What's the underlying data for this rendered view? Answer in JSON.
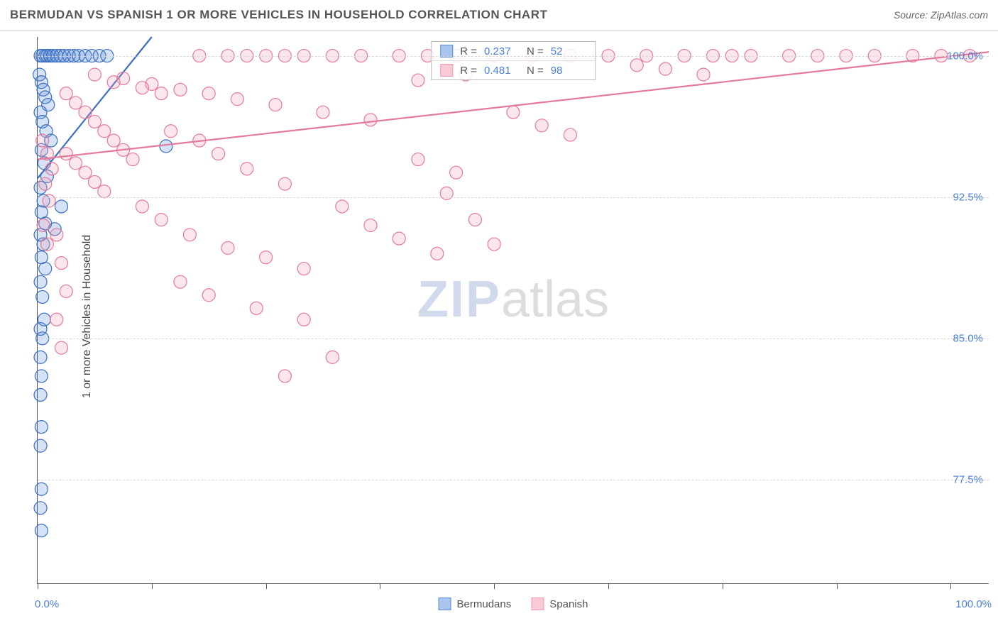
{
  "header": {
    "title": "BERMUDAN VS SPANISH 1 OR MORE VEHICLES IN HOUSEHOLD CORRELATION CHART",
    "source": "Source: ZipAtlas.com"
  },
  "chart": {
    "type": "scatter",
    "ylabel": "1 or more Vehicles in Household",
    "xlim": [
      0,
      100
    ],
    "ylim": [
      72,
      101
    ],
    "y_ticks": [
      77.5,
      85.0,
      92.5,
      100.0
    ],
    "y_tick_labels": [
      "77.5%",
      "85.0%",
      "92.5%",
      "100.0%"
    ],
    "x_ticks": [
      0,
      12,
      24,
      36,
      48,
      60,
      72,
      84,
      96
    ],
    "x_axis_labels": {
      "min": "0.0%",
      "max": "100.0%"
    },
    "background_color": "#ffffff",
    "grid_color": "#d8d8d8",
    "axis_color": "#555555",
    "tick_label_color": "#4a7fd8",
    "marker_radius": 9,
    "marker_fill_opacity": 0.25,
    "marker_stroke_width": 1.2,
    "watermark": {
      "zip": "ZIP",
      "atlas": "atlas"
    },
    "series": [
      {
        "name": "Bermudans",
        "color": "#5b8dd6",
        "stroke": "#3b6fc0",
        "trend": {
          "x1": 0,
          "y1": 93.5,
          "x2": 12,
          "y2": 101
        },
        "stats": {
          "r": "0.237",
          "n": "52"
        },
        "points": [
          [
            0.3,
            100
          ],
          [
            0.5,
            100
          ],
          [
            0.8,
            100
          ],
          [
            1.0,
            100
          ],
          [
            1.3,
            100
          ],
          [
            1.6,
            100
          ],
          [
            2.0,
            100
          ],
          [
            2.4,
            100
          ],
          [
            2.8,
            100
          ],
          [
            3.3,
            100
          ],
          [
            3.8,
            100
          ],
          [
            4.3,
            100
          ],
          [
            5.0,
            100
          ],
          [
            5.7,
            100
          ],
          [
            6.5,
            100
          ],
          [
            7.3,
            100
          ],
          [
            0.2,
            99.0
          ],
          [
            0.4,
            98.6
          ],
          [
            0.6,
            98.2
          ],
          [
            0.8,
            97.8
          ],
          [
            1.1,
            97.4
          ],
          [
            0.3,
            97.0
          ],
          [
            0.5,
            96.5
          ],
          [
            0.9,
            96.0
          ],
          [
            1.4,
            95.5
          ],
          [
            0.4,
            95.0
          ],
          [
            0.7,
            94.3
          ],
          [
            1.0,
            93.6
          ],
          [
            0.3,
            93.0
          ],
          [
            0.6,
            92.3
          ],
          [
            0.4,
            91.7
          ],
          [
            0.8,
            91.1
          ],
          [
            0.3,
            90.5
          ],
          [
            0.6,
            90.0
          ],
          [
            0.4,
            89.3
          ],
          [
            0.8,
            88.7
          ],
          [
            0.3,
            88.0
          ],
          [
            0.5,
            87.2
          ],
          [
            0.7,
            86.0
          ],
          [
            0.3,
            85.5
          ],
          [
            0.5,
            85.0
          ],
          [
            0.3,
            84.0
          ],
          [
            0.4,
            83.0
          ],
          [
            0.3,
            82.0
          ],
          [
            0.4,
            80.3
          ],
          [
            0.3,
            79.3
          ],
          [
            0.4,
            77.0
          ],
          [
            0.3,
            76.0
          ],
          [
            0.4,
            74.8
          ],
          [
            13.5,
            95.2
          ],
          [
            2.5,
            92.0
          ],
          [
            1.8,
            90.8
          ]
        ]
      },
      {
        "name": "Spanish",
        "color": "#f19ab4",
        "stroke": "#e47a9a",
        "trend": {
          "x1": 0,
          "y1": 94.5,
          "x2": 100,
          "y2": 100.2
        },
        "stats": {
          "r": "0.481",
          "n": "98"
        },
        "points": [
          [
            17,
            100
          ],
          [
            20,
            100
          ],
          [
            22,
            100
          ],
          [
            24,
            100
          ],
          [
            26,
            100
          ],
          [
            28,
            100
          ],
          [
            31,
            100
          ],
          [
            34,
            100
          ],
          [
            38,
            100
          ],
          [
            41,
            100
          ],
          [
            44,
            100
          ],
          [
            48,
            100
          ],
          [
            52,
            100
          ],
          [
            56,
            100
          ],
          [
            60,
            100
          ],
          [
            64,
            100
          ],
          [
            68,
            100
          ],
          [
            71,
            100
          ],
          [
            73,
            100
          ],
          [
            75,
            100
          ],
          [
            79,
            100
          ],
          [
            82,
            100
          ],
          [
            85,
            100
          ],
          [
            88,
            100
          ],
          [
            92,
            100
          ],
          [
            95,
            100
          ],
          [
            98,
            100
          ],
          [
            63,
            99.5
          ],
          [
            66,
            99.3
          ],
          [
            70,
            99.0
          ],
          [
            45,
            99.0
          ],
          [
            40,
            98.7
          ],
          [
            12,
            98.5
          ],
          [
            15,
            98.2
          ],
          [
            18,
            98.0
          ],
          [
            21,
            97.7
          ],
          [
            25,
            97.4
          ],
          [
            30,
            97.0
          ],
          [
            35,
            96.6
          ],
          [
            3,
            98.0
          ],
          [
            4,
            97.5
          ],
          [
            5,
            97.0
          ],
          [
            6,
            96.5
          ],
          [
            7,
            96.0
          ],
          [
            8,
            95.5
          ],
          [
            9,
            95.0
          ],
          [
            10,
            94.5
          ],
          [
            3,
            94.8
          ],
          [
            4,
            94.3
          ],
          [
            5,
            93.8
          ],
          [
            6,
            93.3
          ],
          [
            7,
            92.8
          ],
          [
            14,
            96.0
          ],
          [
            17,
            95.5
          ],
          [
            19,
            94.8
          ],
          [
            22,
            94.0
          ],
          [
            26,
            93.2
          ],
          [
            11,
            92.0
          ],
          [
            13,
            91.3
          ],
          [
            16,
            90.5
          ],
          [
            20,
            89.8
          ],
          [
            24,
            89.3
          ],
          [
            28,
            88.7
          ],
          [
            15,
            88.0
          ],
          [
            18,
            87.3
          ],
          [
            23,
            86.6
          ],
          [
            43,
            92.7
          ],
          [
            46,
            91.3
          ],
          [
            48,
            90.0
          ],
          [
            42,
            89.5
          ],
          [
            32,
            92.0
          ],
          [
            35,
            91.0
          ],
          [
            38,
            90.3
          ],
          [
            28,
            86.0
          ],
          [
            31,
            84.0
          ],
          [
            26,
            83.0
          ],
          [
            2,
            90.5
          ],
          [
            2.5,
            89.0
          ],
          [
            3,
            87.5
          ],
          [
            2,
            86.0
          ],
          [
            2.5,
            84.5
          ],
          [
            9,
            98.8
          ],
          [
            11,
            98.3
          ],
          [
            13,
            98.0
          ],
          [
            50,
            97.0
          ],
          [
            53,
            96.3
          ],
          [
            56,
            95.8
          ],
          [
            6,
            99.0
          ],
          [
            8,
            98.6
          ],
          [
            40,
            94.5
          ],
          [
            44,
            93.8
          ],
          [
            0.5,
            95.5
          ],
          [
            1.0,
            94.8
          ],
          [
            1.5,
            94.0
          ],
          [
            0.8,
            93.2
          ],
          [
            1.2,
            92.3
          ],
          [
            0.6,
            91.0
          ],
          [
            1.0,
            90.0
          ]
        ]
      }
    ],
    "legend": [
      {
        "label": "Bermudans",
        "fill": "#a9c5ec",
        "stroke": "#5b8dd6"
      },
      {
        "label": "Spanish",
        "fill": "#f9c9d6",
        "stroke": "#f19ab4"
      }
    ],
    "stats_box": {
      "r_label": "R =",
      "n_label": "N =",
      "rows": [
        {
          "swatch_fill": "#a9c5ec",
          "swatch_stroke": "#5b8dd6",
          "r": "0.237",
          "n": "52"
        },
        {
          "swatch_fill": "#f9c9d6",
          "swatch_stroke": "#f19ab4",
          "r": "0.481",
          "n": "98"
        }
      ]
    }
  }
}
